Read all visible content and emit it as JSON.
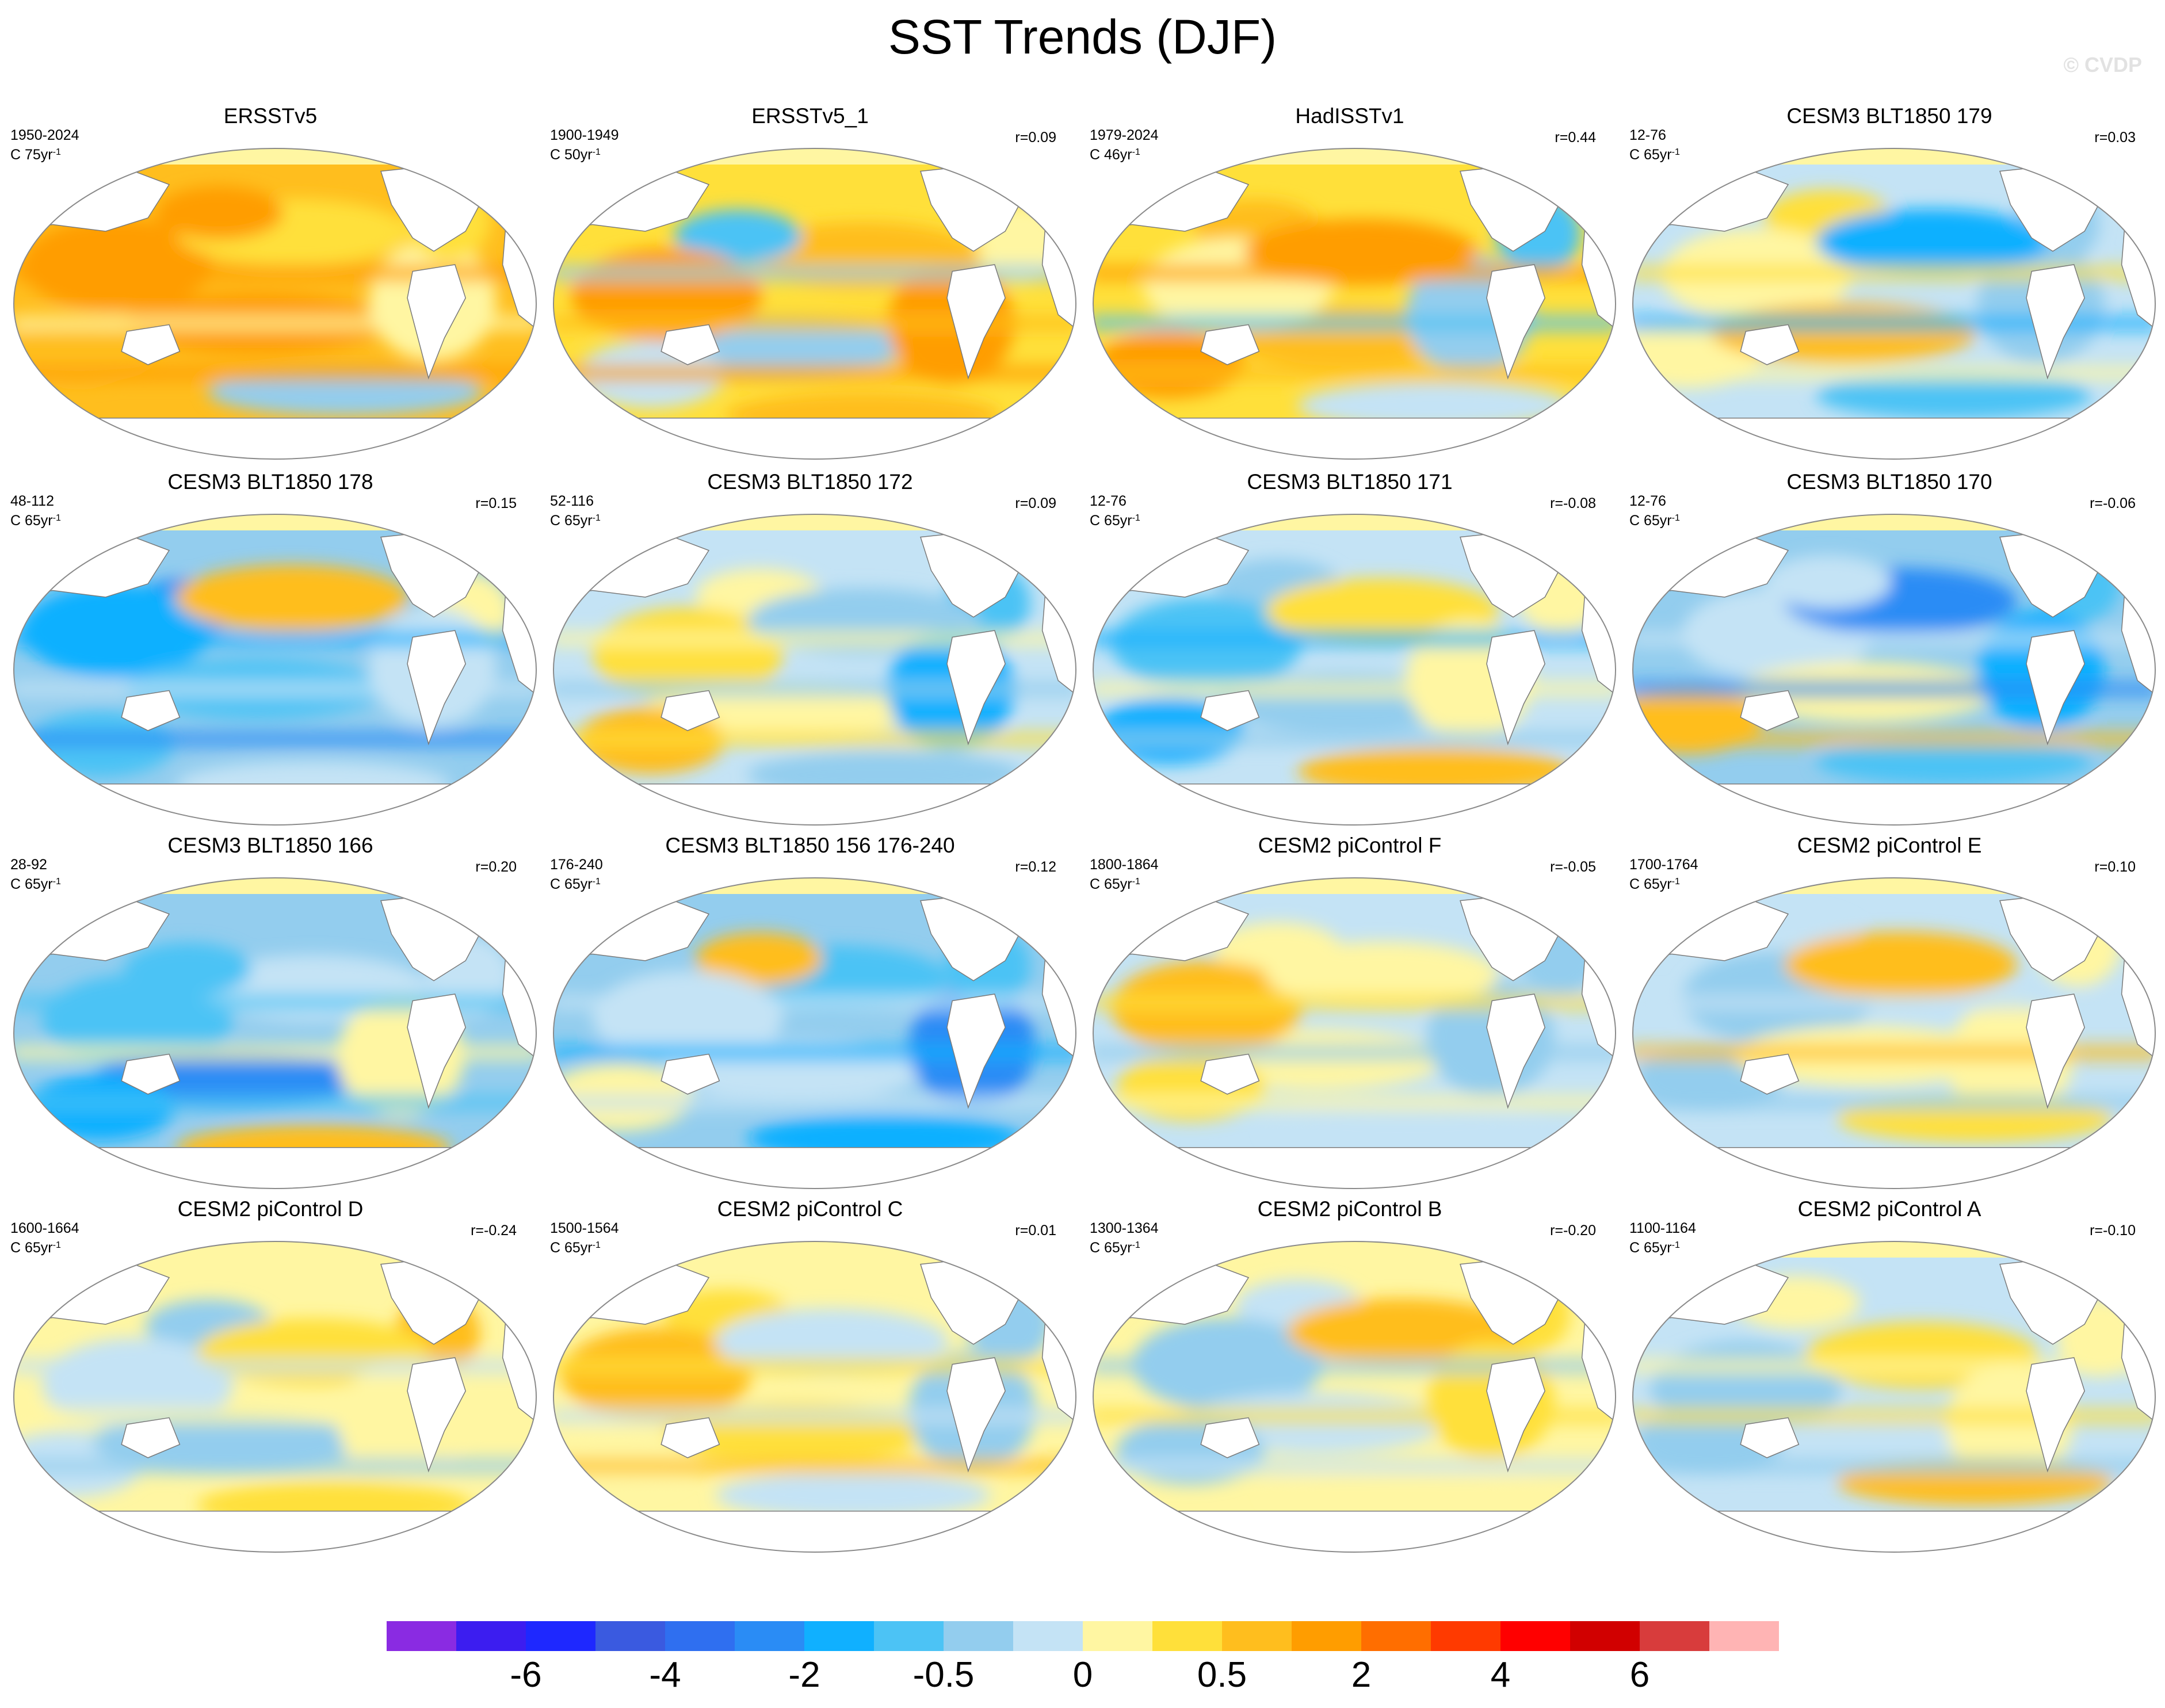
{
  "title": "SST Trends (DJF)",
  "watermark": "© CVDP",
  "units_prefix": "C",
  "units_suffix": "yr",
  "units_exp": "-1",
  "panels": [
    {
      "title": "ERSSTv5",
      "period": "1950-2024",
      "length": "75",
      "r": "",
      "scheme": "warm"
    },
    {
      "title": "ERSSTv5_1",
      "period": "1900-1949",
      "length": "50",
      "r": "r=0.09",
      "scheme": "warmcool"
    },
    {
      "title": "HadISSTv1",
      "period": "1979-2024",
      "length": "46",
      "r": "r=0.44",
      "scheme": "warmcool"
    },
    {
      "title": "CESM3 BLT1850 179",
      "period": "12-76",
      "length": "65",
      "r": "r=0.03",
      "scheme": "coolish"
    },
    {
      "title": "CESM3 BLT1850 178",
      "period": "48-112",
      "length": "65",
      "r": "r=0.15",
      "scheme": "cool"
    },
    {
      "title": "CESM3 BLT1850 172",
      "period": "52-116",
      "length": "65",
      "r": "r=0.09",
      "scheme": "coolish"
    },
    {
      "title": "CESM3 BLT1850 171",
      "period": "12-76",
      "length": "65",
      "r": "r=-0.08",
      "scheme": "coolish"
    },
    {
      "title": "CESM3 BLT1850 170",
      "period": "12-76",
      "length": "65",
      "r": "r=-0.06",
      "scheme": "cool"
    },
    {
      "title": "CESM3 BLT1850 166",
      "period": "28-92",
      "length": "65",
      "r": "r=0.20",
      "scheme": "cool"
    },
    {
      "title": "CESM3 BLT1850 156 176-240",
      "period": "176-240",
      "length": "65",
      "r": "r=0.12",
      "scheme": "cool"
    },
    {
      "title": "CESM2 piControl F",
      "period": "1800-1864",
      "length": "65",
      "r": "r=-0.05",
      "scheme": "mixed"
    },
    {
      "title": "CESM2 piControl E",
      "period": "1700-1764",
      "length": "65",
      "r": "r=0.10",
      "scheme": "mixed"
    },
    {
      "title": "CESM2 piControl D",
      "period": "1600-1664",
      "length": "65",
      "r": "r=-0.24",
      "scheme": "mixedwarm"
    },
    {
      "title": "CESM2 piControl C",
      "period": "1500-1564",
      "length": "65",
      "r": "r=0.01",
      "scheme": "mixedwarm"
    },
    {
      "title": "CESM2 piControl B",
      "period": "1300-1364",
      "length": "65",
      "r": "r=-0.20",
      "scheme": "mixedwarm"
    },
    {
      "title": "CESM2 piControl A",
      "period": "1100-1164",
      "length": "65",
      "r": "r=-0.10",
      "scheme": "mixed"
    }
  ],
  "colorbar": {
    "colors": [
      "#8a2be2",
      "#3c1df0",
      "#1e28ff",
      "#3a5ae0",
      "#2f6ff0",
      "#2a8cf5",
      "#10b0ff",
      "#4cc3f5",
      "#93cdee",
      "#c4e3f5",
      "#fff6a2",
      "#ffe03a",
      "#ffbe1e",
      "#ff9d00",
      "#ff6e00",
      "#ff3a00",
      "#ff0000",
      "#d10000",
      "#d83c3c",
      "#ffb4b4"
    ],
    "labels": [
      {
        "text": "-6",
        "boundary": 2
      },
      {
        "text": "-4",
        "boundary": 4
      },
      {
        "text": "-2",
        "boundary": 6
      },
      {
        "text": "-0.5",
        "boundary": 8
      },
      {
        "text": "0",
        "boundary": 10
      },
      {
        "text": "0.5",
        "boundary": 12
      },
      {
        "text": "2",
        "boundary": 14
      },
      {
        "text": "4",
        "boundary": 16
      },
      {
        "text": "6",
        "boundary": 18
      }
    ]
  }
}
